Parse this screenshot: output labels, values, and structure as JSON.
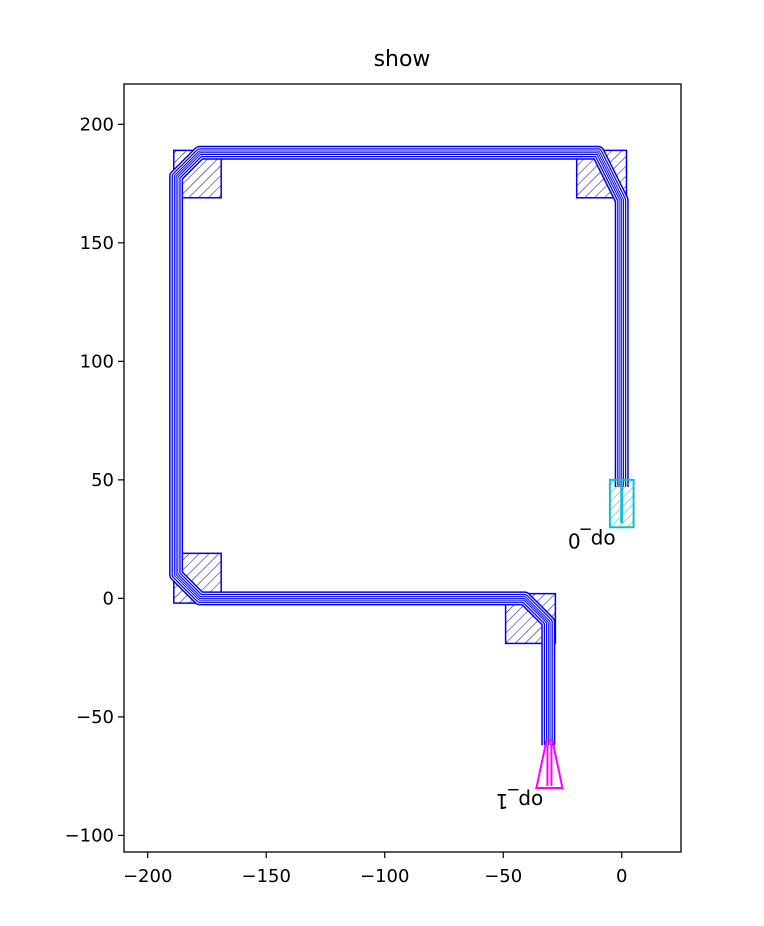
{
  "chart_data": {
    "type": "layout",
    "title": "show",
    "xlabel": "",
    "ylabel": "",
    "xlim": [
      -210,
      25
    ],
    "ylim": [
      -107,
      217
    ],
    "xticks": [
      -200,
      -150,
      -100,
      -50,
      0
    ],
    "yticks": [
      -100,
      -50,
      0,
      50,
      100,
      150,
      200
    ],
    "xtick_labels": [
      "−200",
      "−150",
      "−100",
      "−50",
      "0"
    ],
    "ytick_labels": [
      "−100",
      "−50",
      "0",
      "50",
      "100",
      "150",
      "200"
    ],
    "waveguide": {
      "color": "#0000ee",
      "widths": [
        0.5,
        2.5,
        4.5
      ],
      "path": [
        [
          0,
          47
        ],
        [
          0,
          168
        ],
        [
          -10,
          188
        ],
        [
          -178,
          188
        ],
        [
          -188,
          178
        ],
        [
          -188,
          10
        ],
        [
          -178,
          0
        ],
        [
          -41,
          0
        ],
        [
          -31,
          -10
        ],
        [
          -31,
          -62
        ]
      ]
    },
    "bend_boxes": [
      {
        "x": [
          -189,
          -169
        ],
        "y": [
          169,
          189
        ]
      },
      {
        "x": [
          -19,
          2
        ],
        "y": [
          169,
          189
        ]
      },
      {
        "x": [
          -189,
          -169
        ],
        "y": [
          -2,
          19
        ]
      },
      {
        "x": [
          -49,
          -28
        ],
        "y": [
          -19,
          2
        ]
      }
    ],
    "ports": [
      {
        "name": "op_0",
        "color": "#17becf",
        "x": [
          -5,
          5
        ],
        "y": [
          30,
          50
        ]
      },
      {
        "name": "op_1",
        "color": "#ff00ff",
        "x": [
          -36,
          -25
        ],
        "y": [
          -80,
          -60
        ]
      }
    ]
  }
}
